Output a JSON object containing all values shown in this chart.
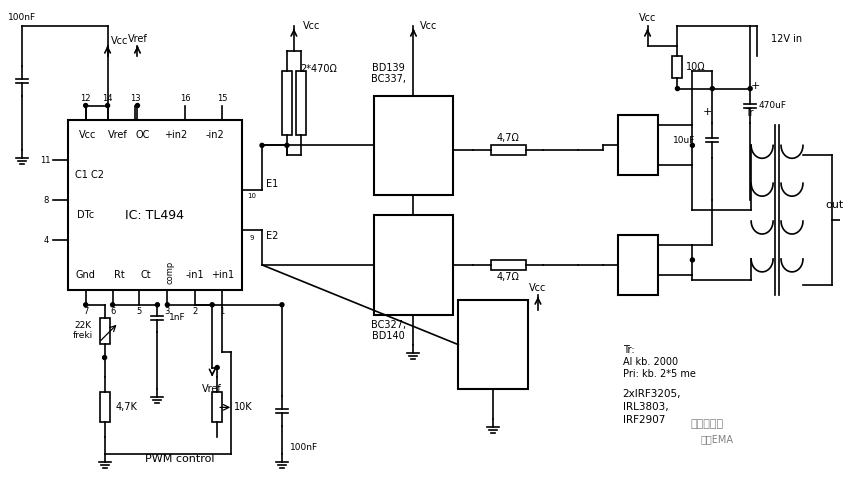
{
  "title": "",
  "bg_color": "#ffffff",
  "fig_width": 8.43,
  "fig_height": 4.83,
  "dpi": 100,
  "labels": {
    "vref_top": "Vref",
    "100nf_top": "100nF",
    "vcc_top_left": "Vcc",
    "ic_name": "IC: TL494",
    "pin12": "12",
    "pin14": "14",
    "pin13": "13",
    "pin16": "16",
    "pin15": "15",
    "pin11": "11",
    "pin8": "8",
    "pin4": "4",
    "pin7": "7",
    "pin6": "6",
    "pin5": "5",
    "pin3": "3",
    "pin2": "2",
    "pin1": "1",
    "vcc_label": "Vcc",
    "vref_label": "Vref",
    "oc_label": "OC",
    "in2p_label": "+in2",
    "in2m_label": "-in2",
    "c1c2_label": "C1 C2",
    "dtc_label": "DTc",
    "gnd_label": "Gnd",
    "rt_label": "Rt",
    "ct_label": "Ct",
    "comp_label": "comp",
    "in1m_label": "-in1",
    "in1p_label": "+in1",
    "e1_label": "E1",
    "e2_label": "E2",
    "r470_label": "2*470Ω",
    "bc337_label": "BC337,",
    "bd139_label": "BD139",
    "bc327_label": "BC327,",
    "bd140_label": "BD140",
    "r47_top": "4,7Ω",
    "r47_bot": "4,7Ω",
    "vcc_mid": "Vcc",
    "vcc_top_right": "Vcc",
    "r10_label": "10Ω",
    "c470u_label": "470uF",
    "c10u_label": "10uF",
    "tr_label": "Tr",
    "out_label": "out",
    "vin_label": "12V in",
    "tr_spec1": "Tr:",
    "tr_spec2": "Al kb. 2000",
    "tr_spec3": "Pri: kb. 2*5 me",
    "mosfet_label1": "2xIRF3205,",
    "mosfet_label2": "IRL3803,",
    "mosfet_label3": "IRF2907",
    "r22k_label": "22K\nfreki",
    "r47k_label": "4,7K",
    "c1nf_label": "1nF",
    "r10k_label": "10K",
    "c100nf_label": "100nF",
    "vref_bot": "Vref",
    "pwm_label": "PWM control",
    "watermark1": "电路一点通",
    "watermark2": "图源EMA"
  }
}
